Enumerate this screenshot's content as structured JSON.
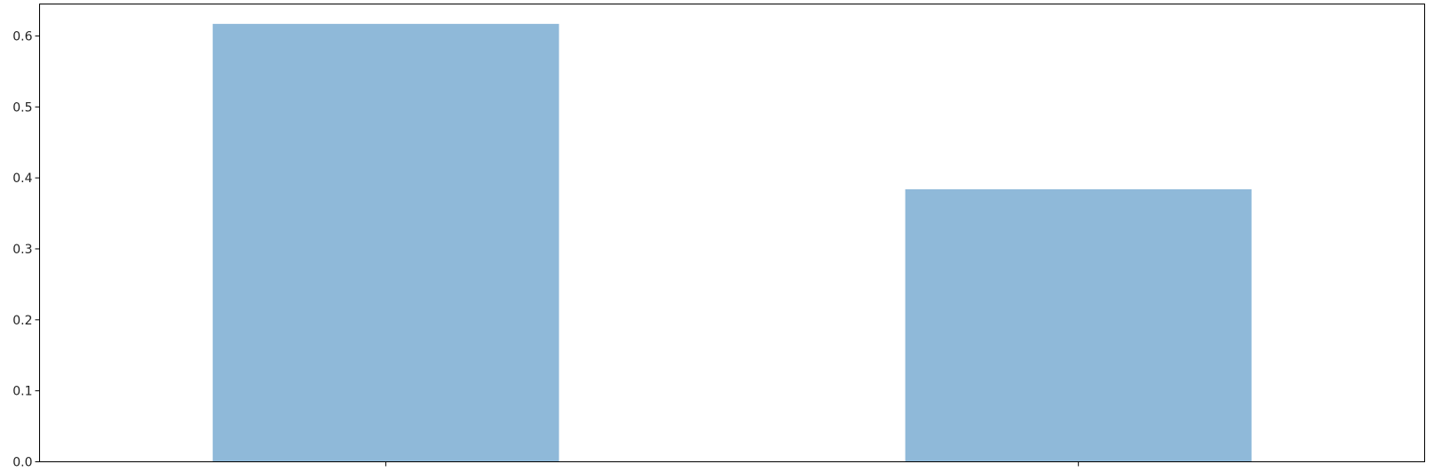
{
  "chart_data": {
    "type": "bar",
    "title": "",
    "xlabel": "",
    "ylabel": "",
    "categories": [
      "",
      ""
    ],
    "values": [
      0.617,
      0.384
    ],
    "ylim": [
      0,
      0.645
    ],
    "yticks": [
      "0.0",
      "0.1",
      "0.2",
      "0.3",
      "0.4",
      "0.5",
      "0.6"
    ],
    "ytick_values": [
      0.0,
      0.1,
      0.2,
      0.3,
      0.4,
      0.5,
      0.6
    ],
    "grid": false,
    "bar_color": "#8fb9d9"
  }
}
